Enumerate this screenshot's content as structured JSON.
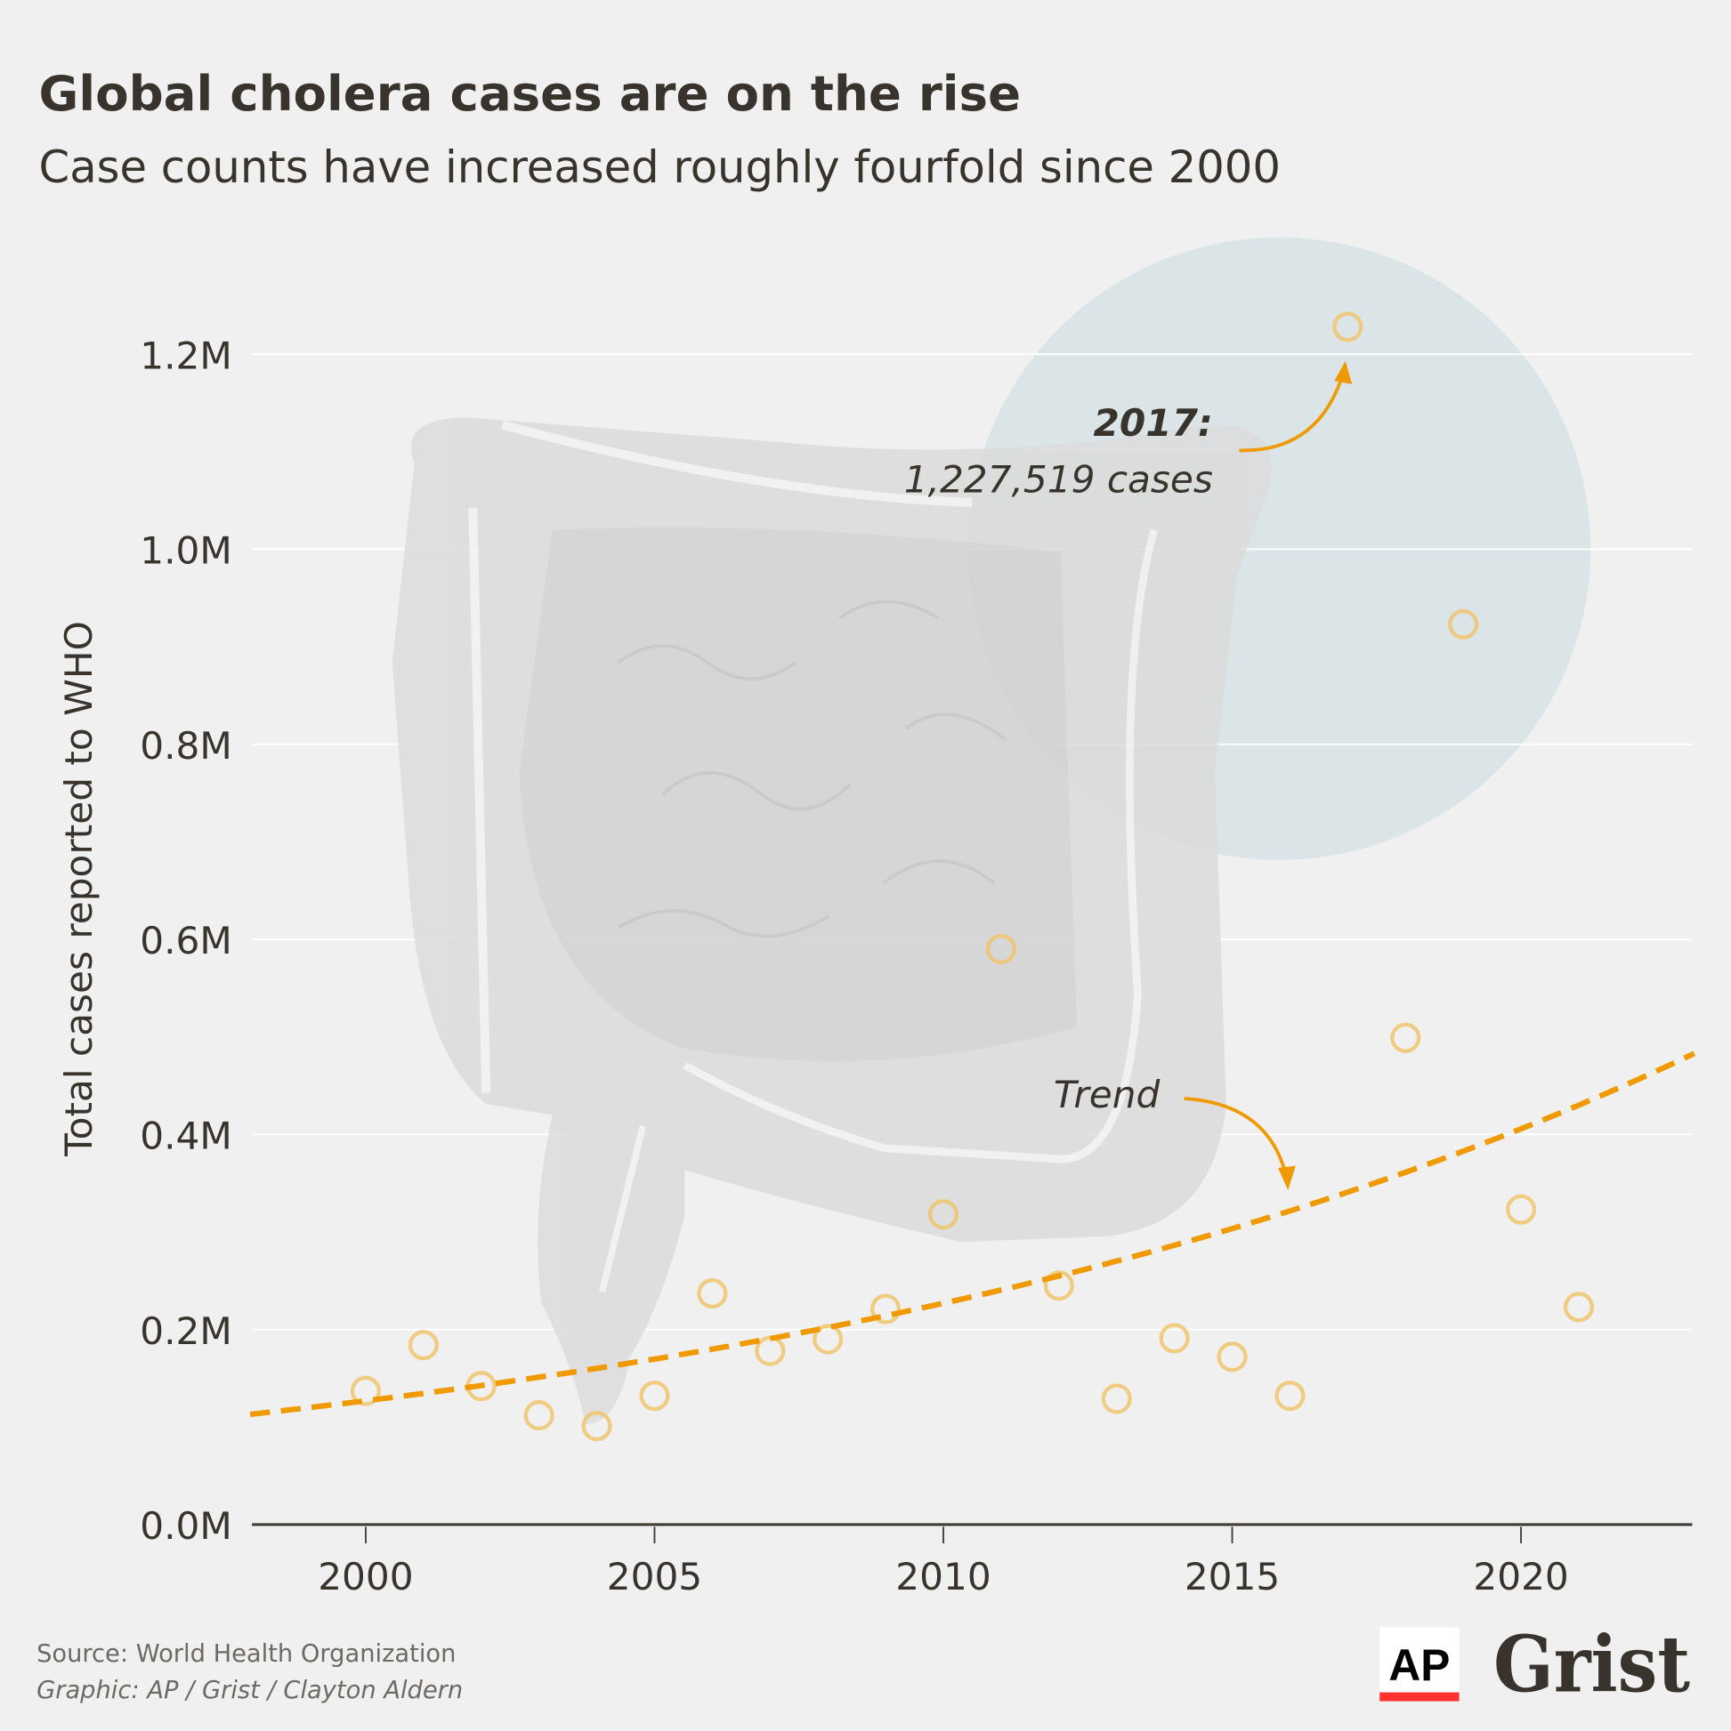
{
  "title": "Global cholera cases are on the rise",
  "subtitle": "Case counts have increased roughly fourfold since 2000",
  "chart_data": {
    "type": "scatter",
    "title": "Global cholera cases are on the rise",
    "subtitle": "Case counts have increased roughly fourfold since 2000",
    "xlabel": "",
    "ylabel": "Total cases reported to WHO",
    "xlim": [
      1998,
      2023
    ],
    "ylim": [
      0,
      1.2
    ],
    "x_ticks": [
      "2000",
      "2005",
      "2010",
      "2015",
      "2020"
    ],
    "y_ticks": [
      "0.0M",
      "0.2M",
      "0.4M",
      "0.6M",
      "0.8M",
      "1.0M",
      "1.2M"
    ],
    "grid": "horizontal",
    "unit": "millions of cases",
    "x": [
      2000,
      2001,
      2002,
      2003,
      2004,
      2005,
      2006,
      2007,
      2008,
      2009,
      2010,
      2011,
      2012,
      2013,
      2014,
      2015,
      2016,
      2017,
      2018,
      2019,
      2020,
      2021
    ],
    "y": [
      0.137,
      0.184,
      0.142,
      0.112,
      0.101,
      0.132,
      0.237,
      0.178,
      0.19,
      0.221,
      0.318,
      0.59,
      0.245,
      0.129,
      0.191,
      0.172,
      0.132,
      1.228,
      0.499,
      0.923,
      0.323,
      0.223
    ],
    "trend": {
      "label": "Trend",
      "type": "exponential",
      "start": [
        1998,
        0.113
      ],
      "end": [
        2023,
        0.483
      ]
    },
    "annotations": [
      {
        "x": 2017,
        "label_bold": "2017:",
        "label": "1,227,519 cases"
      }
    ],
    "colors": {
      "points": "#f0c46e",
      "trend": "#ee9a00",
      "highlight_circle": "#dbe4e6",
      "background": "#f0f0f0"
    }
  },
  "footer": {
    "source": "Source: World Health Organization",
    "credit": "Graphic: AP / Grist / Clayton Aldern"
  },
  "logos": {
    "ap": "AP",
    "grist": "Grist"
  }
}
